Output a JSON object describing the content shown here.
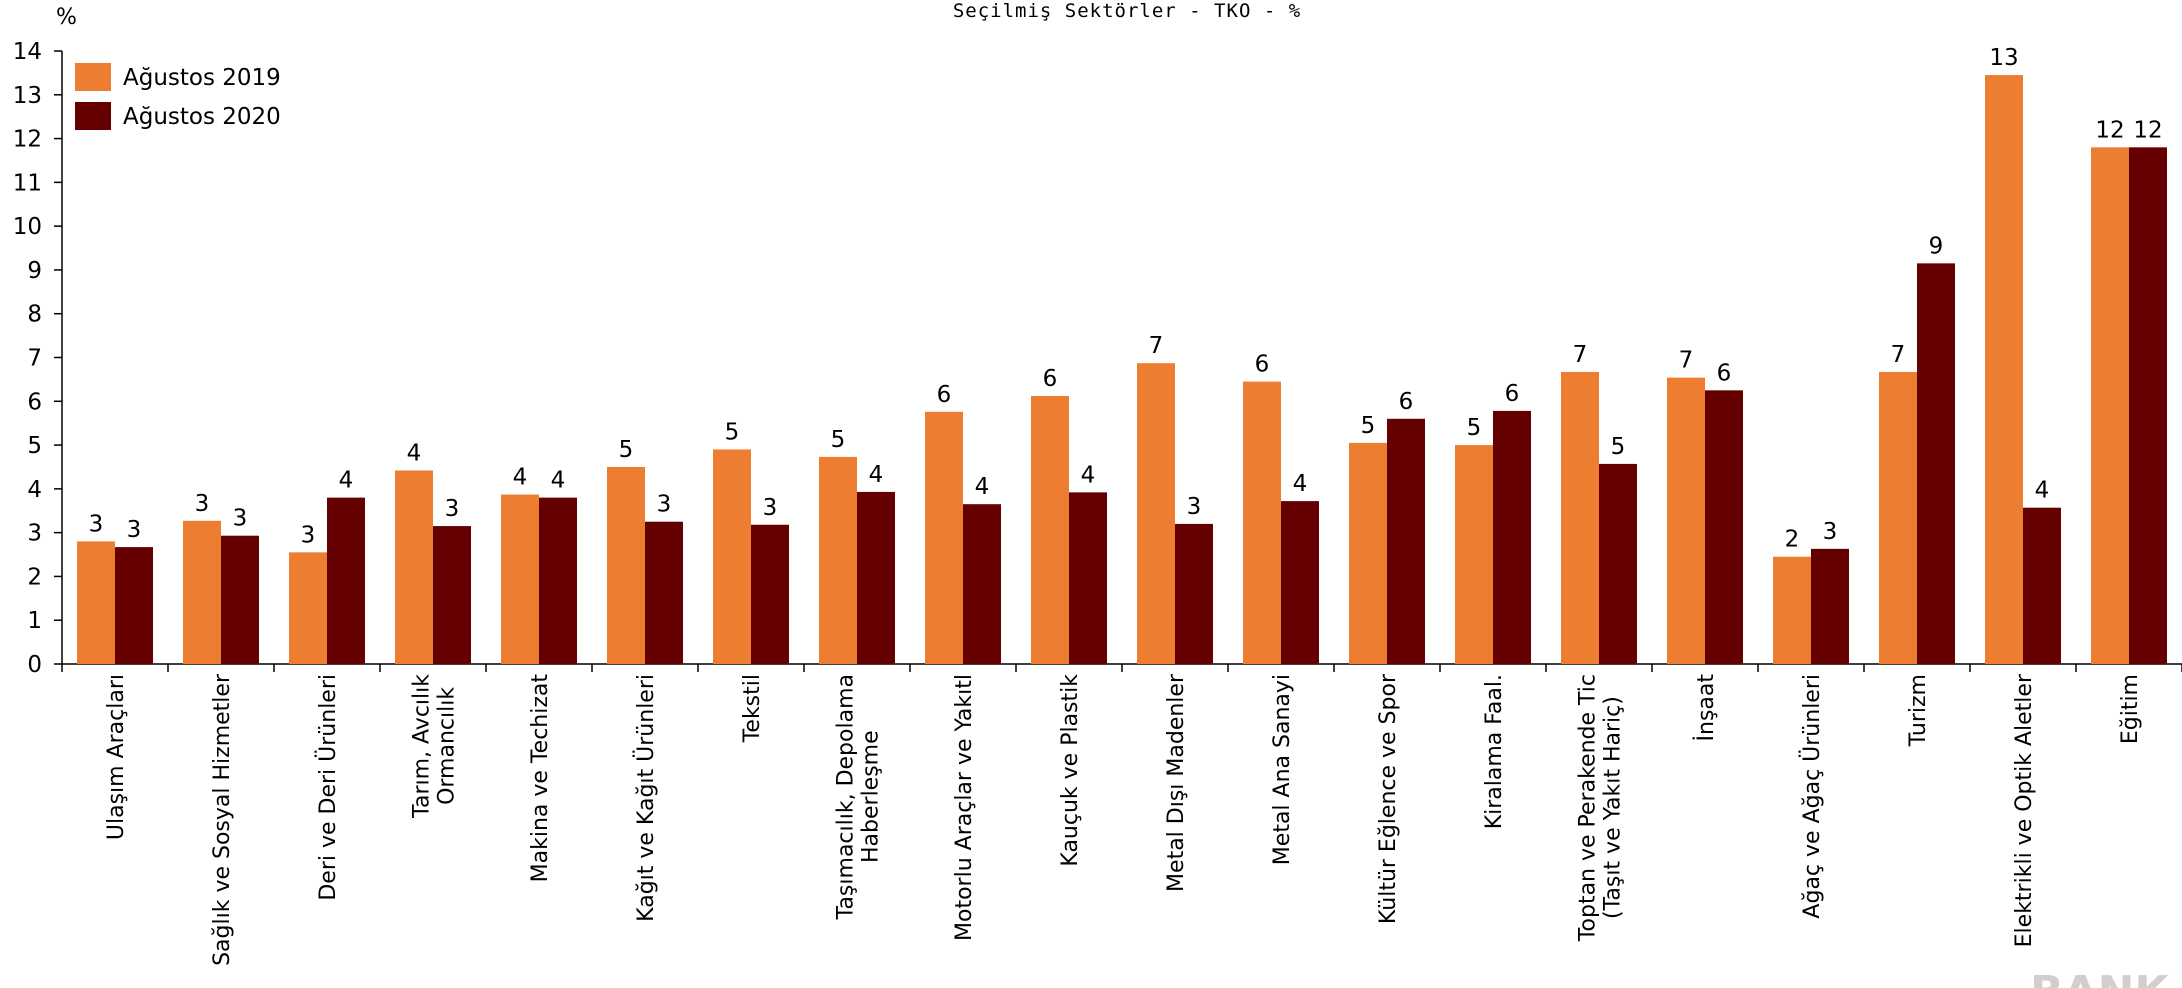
{
  "chart_data": {
    "type": "bar",
    "title": "Seçilmiş Sektörler - TKO - %",
    "ylabel": "%",
    "xlabel": "",
    "ylim": [
      0,
      14
    ],
    "yticks": [
      0,
      1,
      2,
      3,
      4,
      5,
      6,
      7,
      8,
      9,
      10,
      11,
      12,
      13,
      14
    ],
    "grid": false,
    "legend_position": "top-left",
    "categories": [
      [
        "Ulaşım Araçları"
      ],
      [
        "Sağlık ve Sosyal Hizmetler"
      ],
      [
        "Deri ve Deri Ürünleri"
      ],
      [
        "Tarım, Avcılık",
        "Ormancılık"
      ],
      [
        "Makina ve Techizat"
      ],
      [
        "Kağıt  ve Kağıt Ürünleri"
      ],
      [
        "Tekstil"
      ],
      [
        "Taşımacılık, Depolama",
        "Haberleşme"
      ],
      [
        "Motorlu Araçlar ve Yakıtl"
      ],
      [
        "Kauçuk ve Plastik"
      ],
      [
        "Metal Dışı Madenler"
      ],
      [
        "Metal Ana Sanayi"
      ],
      [
        "Kültür Eğlence ve Spor"
      ],
      [
        "Kiralama Faal."
      ],
      [
        "Toptan ve Perakende Tic",
        "(Taşıt ve Yakıt Hariç)"
      ],
      [
        "İnşaat"
      ],
      [
        "Ağaç ve Ağaç Ürünleri"
      ],
      [
        "Turizm"
      ],
      [
        "Elektrikli ve Optik Aletler"
      ],
      [
        "Eğitim"
      ]
    ],
    "series": [
      {
        "name": "Ağustos 2019",
        "color": "#ED7D31",
        "values": [
          2.8,
          3.27,
          2.55,
          4.42,
          3.87,
          4.5,
          4.9,
          4.73,
          5.76,
          6.12,
          6.87,
          6.45,
          5.05,
          5.0,
          6.67,
          6.54,
          2.45,
          6.67,
          13.45,
          11.8
        ],
        "labels": [
          "3",
          "3",
          "3",
          "4",
          "4",
          "5",
          "5",
          "5",
          "6",
          "6",
          "7",
          "6",
          "5",
          "5",
          "7",
          "7",
          "2",
          "7",
          "13",
          "12"
        ]
      },
      {
        "name": "Ağustos 2020",
        "color": "#640000",
        "values": [
          2.67,
          2.93,
          3.8,
          3.15,
          3.8,
          3.25,
          3.18,
          3.93,
          3.65,
          3.92,
          3.2,
          3.72,
          5.6,
          5.78,
          4.57,
          6.25,
          2.63,
          9.15,
          3.57,
          11.8
        ],
        "labels": [
          "3",
          "3",
          "4",
          "3",
          "4",
          "3",
          "3",
          "4",
          "4",
          "4",
          "3",
          "4",
          "6",
          "6",
          "5",
          "6",
          "3",
          "9",
          "4",
          "12"
        ]
      }
    ],
    "watermark_text": "BANK"
  }
}
